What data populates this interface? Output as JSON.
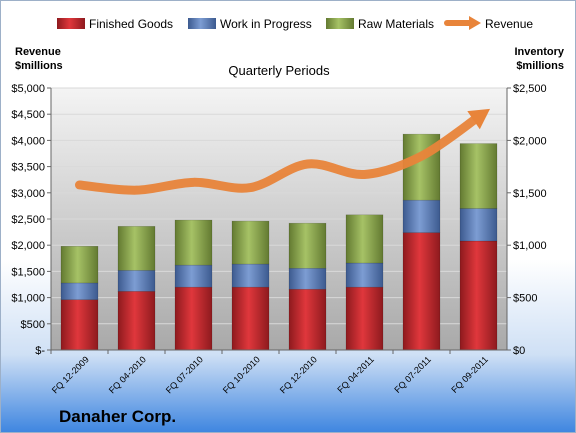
{
  "chart_data": {
    "type": "bar",
    "stacked": true,
    "title": "Quarterly Periods",
    "company": "Danaher Corp.",
    "left_axis_title": [
      "Revenue",
      "$millions"
    ],
    "right_axis_title": [
      "Inventory",
      "$millions"
    ],
    "categories": [
      "FQ 12-2009",
      "FQ 04-2010",
      "FQ 07-2010",
      "FQ 10-2010",
      "FQ 12-2010",
      "FQ 04-2011",
      "FQ 07-2011",
      "FQ 09-2011"
    ],
    "left_ticks": [
      "$-",
      "$500",
      "$1,000",
      "$1,500",
      "$2,000",
      "$2,500",
      "$3,000",
      "$3,500",
      "$4,000",
      "$4,500",
      "$5,000"
    ],
    "right_ticks": [
      "$0",
      "$500",
      "$1,000",
      "$1,500",
      "$2,000",
      "$2,500"
    ],
    "left_ylim": [
      0,
      5000
    ],
    "right_ylim": [
      0,
      2500
    ],
    "series": [
      {
        "name": "Finished Goods",
        "axis": "right",
        "color": "#c0282d",
        "values": [
          480,
          560,
          600,
          600,
          580,
          600,
          1120,
          1040
        ]
      },
      {
        "name": "Work in Progress",
        "axis": "right",
        "color": "#5b7fbd",
        "values": [
          160,
          200,
          210,
          220,
          200,
          230,
          310,
          310
        ]
      },
      {
        "name": "Raw Materials",
        "axis": "right",
        "color": "#8aa84a",
        "values": [
          350,
          420,
          430,
          410,
          430,
          460,
          630,
          620
        ]
      }
    ],
    "line_series": {
      "name": "Revenue",
      "axis": "left",
      "color": "#e8843a",
      "values": [
        3150,
        3050,
        3200,
        3100,
        3550,
        3350,
        3700,
        4450
      ]
    },
    "grid": true
  }
}
